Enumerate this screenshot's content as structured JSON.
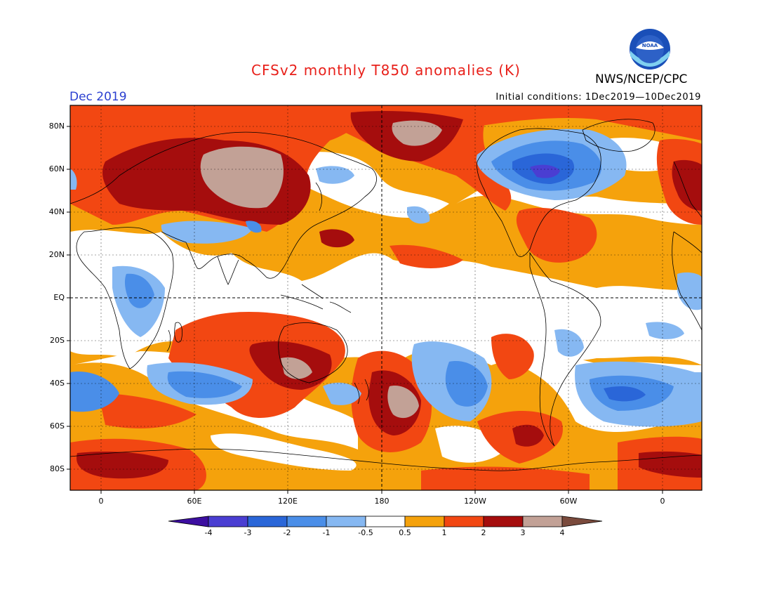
{
  "title": "CFSv2 monthly T850 anomalies (K)",
  "month_label": "Dec 2019",
  "initial_conditions": "Initial conditions: 1Dec2019—10Dec2019",
  "agency": "NWS/NCEP/CPC",
  "logo_text": "NOAA",
  "map": {
    "lat_labels": [
      "80N",
      "60N",
      "40N",
      "20N",
      "EQ",
      "20S",
      "40S",
      "60S",
      "80S"
    ],
    "lon_labels": [
      "0",
      "60E",
      "120E",
      "180",
      "120W",
      "60W",
      "0"
    ]
  },
  "colorbar": {
    "labels": [
      "-4",
      "-3",
      "-2",
      "-1",
      "-0.5",
      "0.5",
      "1",
      "2",
      "3",
      "4"
    ],
    "colors": {
      "lt_m4": "#3c0ea0",
      "m4_m3": "#4a3ed2",
      "m3_m2": "#2a66d8",
      "m2_m1": "#4a8ee8",
      "m1_m05": "#86b8f2",
      "neutral": "#ffffff",
      "p05_p1": "#f5a20c",
      "p1_p2": "#f24712",
      "p2_p3": "#a50d0d",
      "p3_p4": "#c2a196",
      "gt_p4": "#7a4a3c"
    }
  }
}
